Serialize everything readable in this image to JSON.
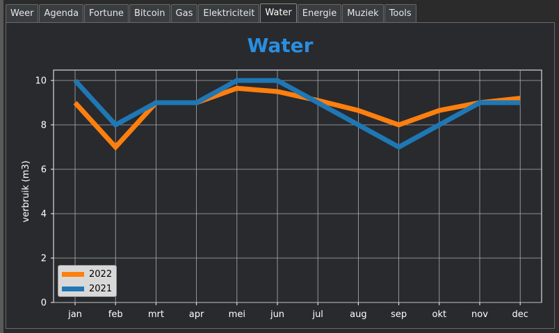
{
  "tabs": [
    {
      "label": "Weer",
      "active": false
    },
    {
      "label": "Agenda",
      "active": false
    },
    {
      "label": "Fortune",
      "active": false
    },
    {
      "label": "Bitcoin",
      "active": false
    },
    {
      "label": "Gas",
      "active": false
    },
    {
      "label": "Elektriciteit",
      "active": false
    },
    {
      "label": "Water",
      "active": true
    },
    {
      "label": "Energie",
      "active": false
    },
    {
      "label": "Muziek",
      "active": false
    },
    {
      "label": "Tools",
      "active": false
    }
  ],
  "chart_data": {
    "type": "line",
    "title": "Water",
    "xlabel": "",
    "ylabel": "verbruik (m3)",
    "categories": [
      "jan",
      "feb",
      "mrt",
      "apr",
      "mei",
      "jun",
      "jul",
      "aug",
      "sep",
      "okt",
      "nov",
      "dec"
    ],
    "ylim": [
      0,
      10
    ],
    "yticks": [
      0,
      2,
      4,
      6,
      8,
      10
    ],
    "grid": true,
    "legend_position": "lower-left",
    "series": [
      {
        "name": "2022",
        "color": "#ff7f0e",
        "values": [
          9,
          7,
          9,
          9,
          9.65,
          9.5,
          9.1,
          8.65,
          8,
          8.65,
          9,
          9.2
        ]
      },
      {
        "name": "2021",
        "color": "#1f77b4",
        "values": [
          10,
          8,
          9,
          9,
          10,
          10,
          9,
          8,
          7,
          8,
          9,
          9
        ]
      }
    ]
  }
}
